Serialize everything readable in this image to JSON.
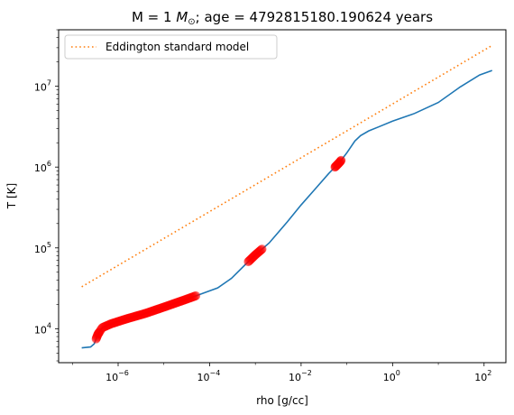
{
  "chart_data": {
    "type": "line",
    "title_prefix": "M = 1 ",
    "title_symbol": "M",
    "title_subscript": "⊙",
    "title_suffix": "; age = 4792815180.190624 years",
    "xlabel": "rho [g/cc]",
    "ylabel": "T [K]",
    "x_scale": "log",
    "y_scale": "log",
    "xlim": [
      5e-08,
      300
    ],
    "ylim": [
      3800,
      50000000.0
    ],
    "x_ticks": [
      {
        "value": 1e-06,
        "base": "10",
        "exp": "−6"
      },
      {
        "value": 0.0001,
        "base": "10",
        "exp": "−4"
      },
      {
        "value": 0.01,
        "base": "10",
        "exp": "−2"
      },
      {
        "value": 1,
        "base": "10",
        "exp": "0"
      },
      {
        "value": 100,
        "base": "10",
        "exp": "2"
      }
    ],
    "y_ticks": [
      {
        "value": 10000.0,
        "base": "10",
        "exp": "4"
      },
      {
        "value": 100000.0,
        "base": "10",
        "exp": "5"
      },
      {
        "value": 1000000.0,
        "base": "10",
        "exp": "6"
      },
      {
        "value": 10000000.0,
        "base": "10",
        "exp": "7"
      }
    ],
    "grid": false,
    "legend_position": "top-left",
    "series": [
      {
        "name": "",
        "style": "solid",
        "color": "#1f77b4",
        "points": [
          [
            1.6e-07,
            5800
          ],
          [
            2.5e-07,
            5950
          ],
          [
            3e-07,
            6500
          ],
          [
            3.6e-07,
            8500
          ],
          [
            4.5e-07,
            10300
          ],
          [
            7e-07,
            11500
          ],
          [
            1.5e-06,
            13200
          ],
          [
            4e-06,
            15500
          ],
          [
            1e-05,
            18500
          ],
          [
            3e-05,
            23000
          ],
          [
            6e-05,
            26500
          ],
          [
            0.00015,
            32000
          ],
          [
            0.0003,
            42000
          ],
          [
            0.0006,
            62000
          ],
          [
            0.001,
            82000
          ],
          [
            0.002,
            115000
          ],
          [
            0.005,
            210000
          ],
          [
            0.01,
            340000
          ],
          [
            0.02,
            530000
          ],
          [
            0.04,
            830000
          ],
          [
            0.07,
            1150000
          ],
          [
            0.1,
            1500000
          ],
          [
            0.15,
            2100000
          ],
          [
            0.2,
            2450000
          ],
          [
            0.3,
            2800000
          ],
          [
            0.5,
            3150000
          ],
          [
            1,
            3700000
          ],
          [
            3,
            4600000
          ],
          [
            10,
            6300000
          ],
          [
            30,
            9800000
          ],
          [
            80,
            13800000
          ],
          [
            150,
            15700000
          ]
        ]
      },
      {
        "name": "Eddington standard model",
        "style": "dotted",
        "color": "#ff7f0e",
        "points": [
          [
            1.6e-07,
            33000
          ],
          [
            150,
            32000000
          ]
        ]
      }
    ],
    "highlight_markers": {
      "color": "#ff0000",
      "groups": [
        {
          "x_start": 3.3e-07,
          "x_end": 3.8e-07,
          "count": 10
        },
        {
          "x_start": 3.8e-07,
          "x_end": 5e-05,
          "count": 120
        },
        {
          "x_start": 0.0007,
          "x_end": 0.0014,
          "count": 22
        },
        {
          "x_start": 0.055,
          "x_end": 0.075,
          "count": 18
        }
      ]
    }
  }
}
